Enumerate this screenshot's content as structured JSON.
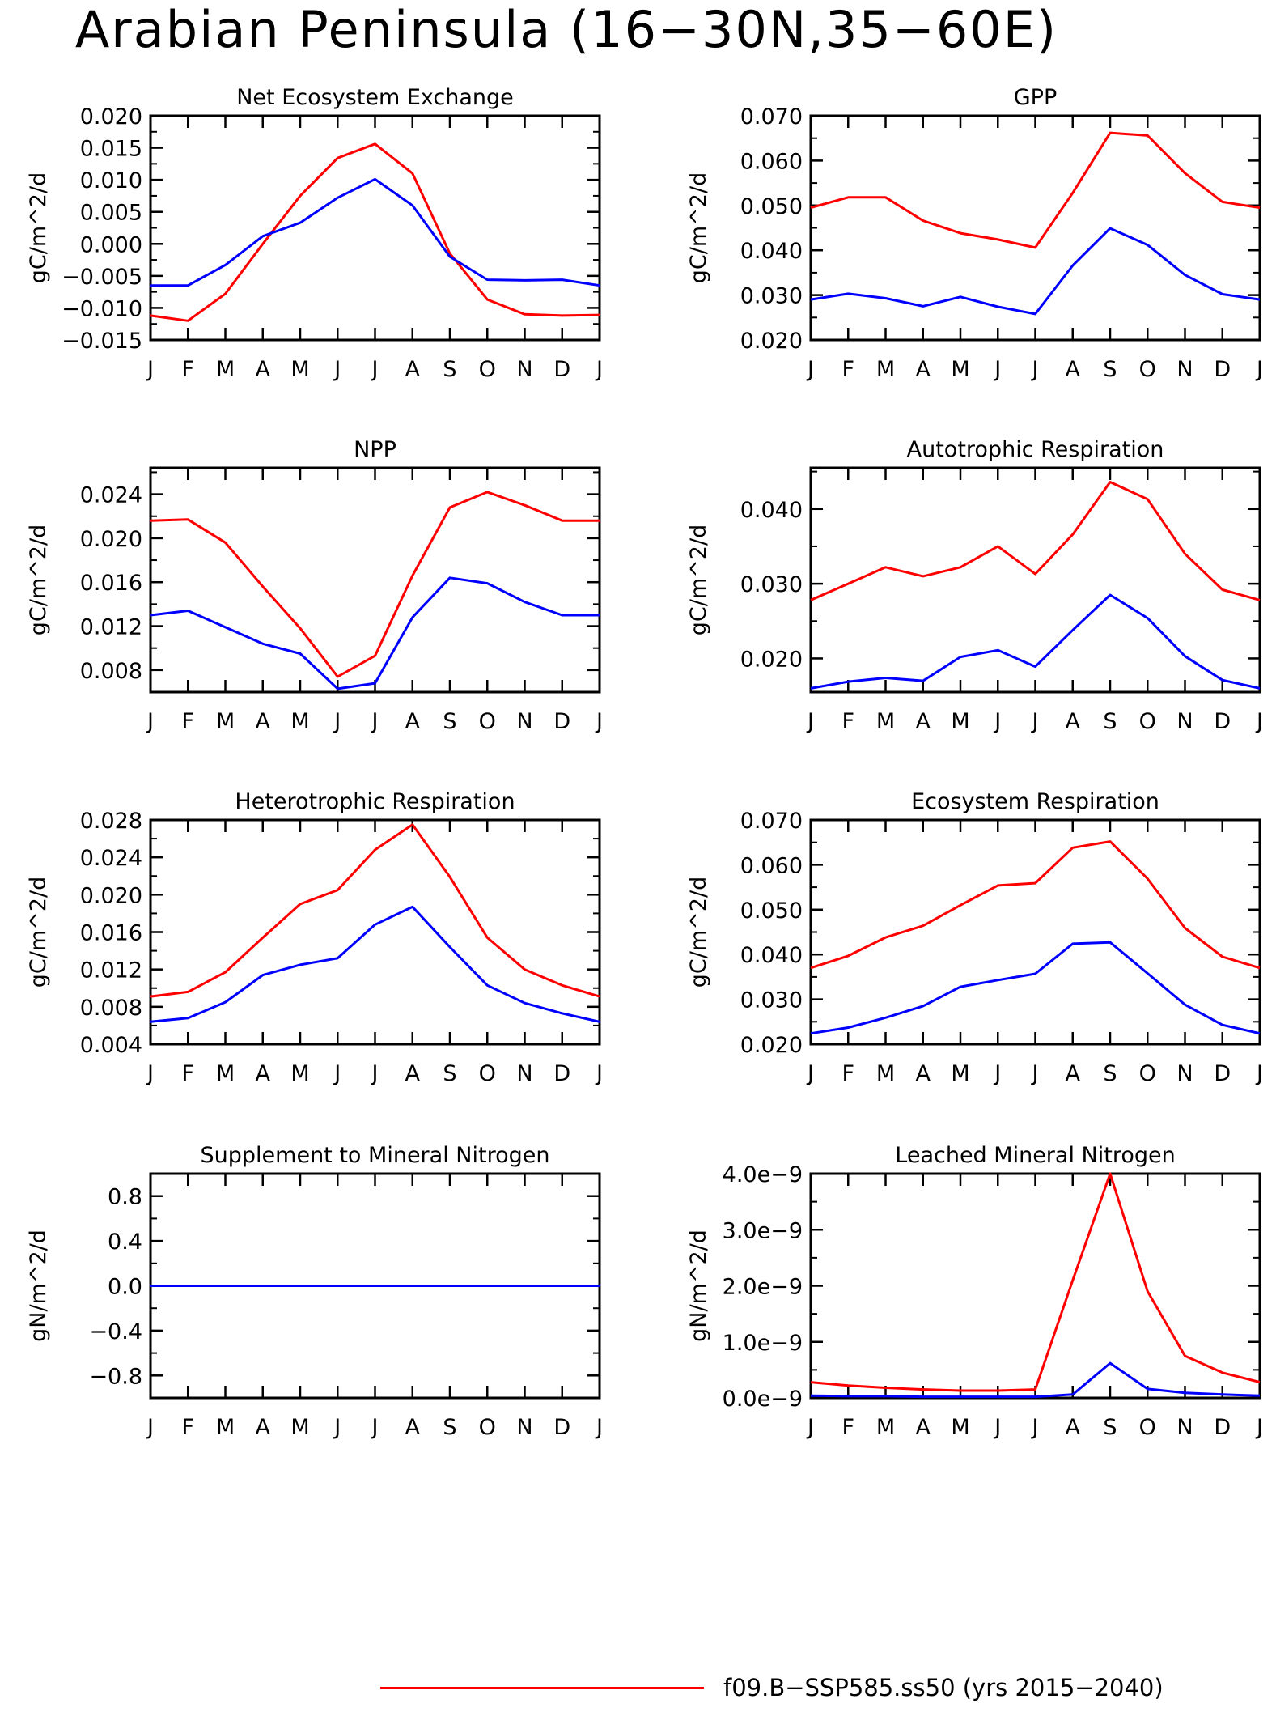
{
  "page_title": "Arabian Peninsula (16−30N,35−60E)",
  "colors": {
    "series_red": "#ff0000",
    "series_blue": "#0000ff",
    "axis": "#000000"
  },
  "legend": [
    {
      "label": "f09.B−SSP585.ss50 (yrs 2015−2040)",
      "color": "#ff0000"
    }
  ],
  "chart_data": [
    {
      "type": "line",
      "title": "Net Ecosystem Exchange",
      "ylabel": "gC/m^2/d",
      "x": [
        "J",
        "F",
        "M",
        "A",
        "M",
        "J",
        "J",
        "A",
        "S",
        "O",
        "N",
        "D",
        "J"
      ],
      "ylim": [
        -0.015,
        0.02
      ],
      "yticks": [
        "0.020",
        "0.015",
        "0.010",
        "0.005",
        "0.000",
        "−0.005",
        "−0.010",
        "−0.015"
      ],
      "ytick_values": [
        0.02,
        0.015,
        0.01,
        0.005,
        0.0,
        -0.005,
        -0.01,
        -0.015
      ],
      "series": [
        {
          "color": "#ff0000",
          "values": [
            -0.0112,
            -0.012,
            -0.0078,
            0.0,
            0.0075,
            0.0134,
            0.0156,
            0.011,
            -0.0015,
            -0.0087,
            -0.011,
            -0.0112,
            -0.0111
          ]
        },
        {
          "color": "#0000ff",
          "values": [
            -0.0065,
            -0.0065,
            -0.0033,
            0.0012,
            0.0033,
            0.0072,
            0.0101,
            0.006,
            -0.002,
            -0.0056,
            -0.0057,
            -0.0056,
            -0.0065
          ]
        }
      ]
    },
    {
      "type": "line",
      "title": "GPP",
      "ylabel": "gC/m^2/d",
      "x": [
        "J",
        "F",
        "M",
        "A",
        "M",
        "J",
        "J",
        "A",
        "S",
        "O",
        "N",
        "D",
        "J"
      ],
      "ylim": [
        0.02,
        0.07
      ],
      "yticks": [
        "0.070",
        "0.060",
        "0.050",
        "0.040",
        "0.030",
        "0.020"
      ],
      "ytick_values": [
        0.07,
        0.06,
        0.05,
        0.04,
        0.03,
        0.02
      ],
      "series": [
        {
          "color": "#ff0000",
          "values": [
            0.0495,
            0.0518,
            0.0518,
            0.0466,
            0.0438,
            0.0424,
            0.0406,
            0.0528,
            0.0662,
            0.0656,
            0.0572,
            0.0508,
            0.0495
          ]
        },
        {
          "color": "#0000ff",
          "values": [
            0.029,
            0.0303,
            0.0293,
            0.0275,
            0.0296,
            0.0274,
            0.0258,
            0.0366,
            0.0449,
            0.0412,
            0.0345,
            0.0302,
            0.029
          ]
        }
      ]
    },
    {
      "type": "line",
      "title": "NPP",
      "ylabel": "gC/m^2/d",
      "x": [
        "J",
        "F",
        "M",
        "A",
        "M",
        "J",
        "J",
        "A",
        "S",
        "O",
        "N",
        "D",
        "J"
      ],
      "ylim": [
        0.006,
        0.0264
      ],
      "yticks": [
        "0.024",
        "0.020",
        "0.016",
        "0.012",
        "0.008"
      ],
      "ytick_values": [
        0.024,
        0.02,
        0.016,
        0.012,
        0.008
      ],
      "series": [
        {
          "color": "#ff0000",
          "values": [
            0.0216,
            0.0217,
            0.0196,
            0.0156,
            0.0118,
            0.0074,
            0.0093,
            0.0166,
            0.0228,
            0.0242,
            0.023,
            0.0216,
            0.0216
          ]
        },
        {
          "color": "#0000ff",
          "values": [
            0.013,
            0.0134,
            0.0119,
            0.0104,
            0.0095,
            0.0063,
            0.0068,
            0.0128,
            0.0164,
            0.0159,
            0.0142,
            0.013,
            0.013
          ]
        }
      ]
    },
    {
      "type": "line",
      "title": "Autotrophic Respiration",
      "ylabel": "gC/m^2/d",
      "x": [
        "J",
        "F",
        "M",
        "A",
        "M",
        "J",
        "J",
        "A",
        "S",
        "O",
        "N",
        "D",
        "J"
      ],
      "ylim": [
        0.0155,
        0.0455
      ],
      "yticks": [
        "0.040",
        "0.030",
        "0.020"
      ],
      "ytick_values": [
        0.04,
        0.03,
        0.02
      ],
      "series": [
        {
          "color": "#ff0000",
          "values": [
            0.0278,
            0.03,
            0.0322,
            0.031,
            0.0322,
            0.035,
            0.0313,
            0.0366,
            0.0436,
            0.0413,
            0.034,
            0.0292,
            0.0278
          ]
        },
        {
          "color": "#0000ff",
          "values": [
            0.016,
            0.0169,
            0.0174,
            0.017,
            0.0202,
            0.0211,
            0.0189,
            0.0238,
            0.0285,
            0.0254,
            0.0203,
            0.0171,
            0.016
          ]
        }
      ]
    },
    {
      "type": "line",
      "title": "Heterotrophic Respiration",
      "ylabel": "gC/m^2/d",
      "x": [
        "J",
        "F",
        "M",
        "A",
        "M",
        "J",
        "J",
        "A",
        "S",
        "O",
        "N",
        "D",
        "J"
      ],
      "ylim": [
        0.004,
        0.028
      ],
      "yticks": [
        "0.028",
        "0.024",
        "0.020",
        "0.016",
        "0.012",
        "0.008",
        "0.004"
      ],
      "ytick_values": [
        0.028,
        0.024,
        0.02,
        0.016,
        0.012,
        0.008,
        0.004
      ],
      "series": [
        {
          "color": "#ff0000",
          "values": [
            0.0091,
            0.0096,
            0.0117,
            0.0154,
            0.019,
            0.0205,
            0.0248,
            0.0275,
            0.0219,
            0.0154,
            0.012,
            0.0103,
            0.0091
          ]
        },
        {
          "color": "#0000ff",
          "values": [
            0.0064,
            0.0068,
            0.0085,
            0.0114,
            0.0125,
            0.0132,
            0.0168,
            0.0187,
            0.0144,
            0.0103,
            0.0084,
            0.0073,
            0.0064
          ]
        }
      ]
    },
    {
      "type": "line",
      "title": "Ecosystem Respiration",
      "ylabel": "gC/m^2/d",
      "x": [
        "J",
        "F",
        "M",
        "A",
        "M",
        "J",
        "J",
        "A",
        "S",
        "O",
        "N",
        "D",
        "J"
      ],
      "ylim": [
        0.02,
        0.07
      ],
      "yticks": [
        "0.070",
        "0.060",
        "0.050",
        "0.040",
        "0.030",
        "0.020"
      ],
      "ytick_values": [
        0.07,
        0.06,
        0.05,
        0.04,
        0.03,
        0.02
      ],
      "series": [
        {
          "color": "#ff0000",
          "values": [
            0.037,
            0.0397,
            0.0438,
            0.0464,
            0.051,
            0.0554,
            0.0559,
            0.0638,
            0.0652,
            0.0569,
            0.0459,
            0.0395,
            0.037
          ]
        },
        {
          "color": "#0000ff",
          "values": [
            0.0224,
            0.0237,
            0.0259,
            0.0285,
            0.0328,
            0.0343,
            0.0357,
            0.0424,
            0.0427,
            0.0358,
            0.0288,
            0.0243,
            0.0224
          ]
        }
      ]
    },
    {
      "type": "line",
      "title": "Supplement to Mineral Nitrogen",
      "ylabel": "gN/m^2/d",
      "x": [
        "J",
        "F",
        "M",
        "A",
        "M",
        "J",
        "J",
        "A",
        "S",
        "O",
        "N",
        "D",
        "J"
      ],
      "ylim": [
        -1.0,
        1.0
      ],
      "yticks": [
        "0.8",
        "0.4",
        "0.0",
        "−0.4",
        "−0.8"
      ],
      "ytick_values": [
        0.8,
        0.4,
        0.0,
        -0.4,
        -0.8
      ],
      "series": [
        {
          "color": "#ff0000",
          "values": [
            0,
            0,
            0,
            0,
            0,
            0,
            0,
            0,
            0,
            0,
            0,
            0,
            0
          ]
        },
        {
          "color": "#0000ff",
          "values": [
            0,
            0,
            0,
            0,
            0,
            0,
            0,
            0,
            0,
            0,
            0,
            0,
            0
          ]
        }
      ]
    },
    {
      "type": "line",
      "title": "Leached Mineral Nitrogen",
      "ylabel": "gN/m^2/d",
      "x": [
        "J",
        "F",
        "M",
        "A",
        "M",
        "J",
        "J",
        "A",
        "S",
        "O",
        "N",
        "D",
        "J"
      ],
      "ylim": [
        0.0,
        4e-09
      ],
      "yticks": [
        "4.0e−9",
        "3.0e−9",
        "2.0e−9",
        "1.0e−9",
        "0.0e−9"
      ],
      "ytick_values": [
        4e-09,
        3e-09,
        2e-09,
        1e-09,
        0.0
      ],
      "series": [
        {
          "color": "#ff0000",
          "values": [
            2.8e-10,
            2.2e-10,
            1.8e-10,
            1.5e-10,
            1.3e-10,
            1.3e-10,
            1.5e-10,
            2.1e-09,
            4e-09,
            1.9e-09,
            7.5e-10,
            4.5e-10,
            2.8e-10
          ]
        },
        {
          "color": "#0000ff",
          "values": [
            4e-11,
            3e-11,
            3e-11,
            2e-11,
            2e-11,
            2e-11,
            2e-11,
            6e-11,
            6.2e-10,
            1.6e-10,
            9e-11,
            6e-11,
            4e-11
          ]
        }
      ]
    }
  ]
}
